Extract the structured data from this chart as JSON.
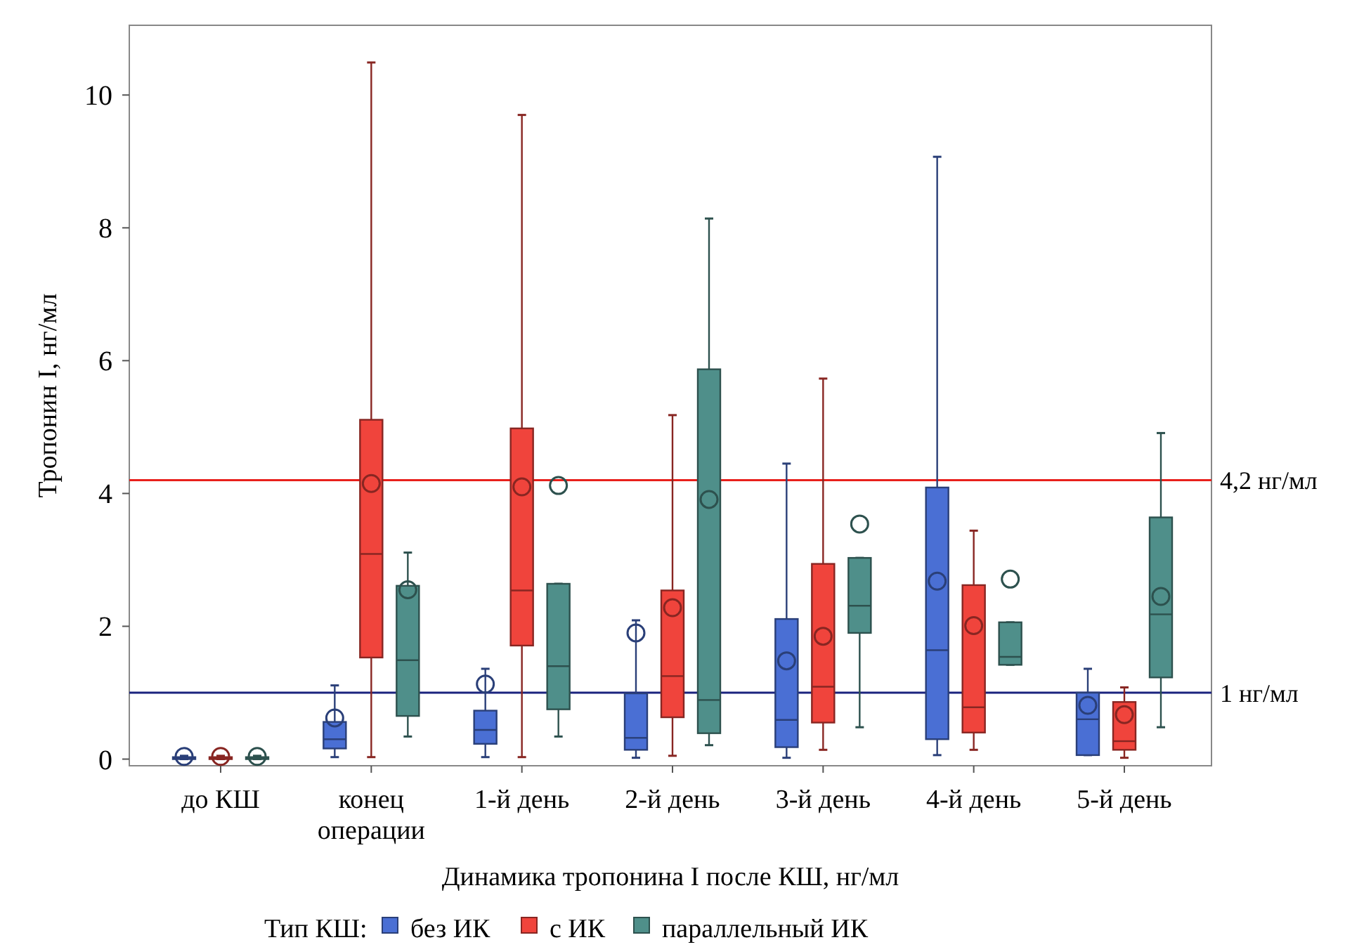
{
  "chart_data": {
    "type": "box",
    "xlabel": "Динамика тропонина I после КШ, нг/мл",
    "ylabel": "Тропонин I, нг/мл",
    "legend_title": "Тип КШ:",
    "legend": "bottom",
    "grid": false,
    "categories": [
      "до КШ",
      "конец операции",
      "1-й день",
      "2-й день",
      "3-й день",
      "4-й день",
      "5-й день"
    ],
    "ylim": [
      -0.1,
      11.05
    ],
    "yticks": [
      0,
      2,
      4,
      6,
      8,
      10
    ],
    "ref_lines": [
      {
        "axis": "y",
        "value": 4.2,
        "label": "4,2 нг/мл",
        "color": "#e8201c"
      },
      {
        "axis": "y",
        "value": 1,
        "label": "1 нг/мл",
        "color": "#1a237e"
      }
    ],
    "series": [
      {
        "name": "без ИК",
        "color": "#4a6fd4",
        "boxes": [
          {
            "low": 0,
            "q1": 0,
            "median": 0.01,
            "q3": 0.03,
            "high": 0.05,
            "mean": 0.04
          },
          {
            "low": 0.03,
            "q1": 0.16,
            "median": 0.3,
            "q3": 0.56,
            "high": 1.11,
            "mean": 0.62
          },
          {
            "low": 0.03,
            "q1": 0.23,
            "median": 0.44,
            "q3": 0.73,
            "high": 1.36,
            "mean": 1.13
          },
          {
            "low": 0.02,
            "q1": 0.14,
            "median": 0.32,
            "q3": 0.99,
            "high": 2.09,
            "mean": 1.9
          },
          {
            "low": 0.02,
            "q1": 0.18,
            "median": 0.59,
            "q3": 2.11,
            "high": 4.45,
            "mean": 1.48
          },
          {
            "low": 0.06,
            "q1": 0.3,
            "median": 1.64,
            "q3": 4.09,
            "high": 9.07,
            "mean": 2.68
          },
          {
            "low": 0.06,
            "q1": 0.06,
            "median": 0.6,
            "q3": 1,
            "high": 1.36,
            "mean": 0.81
          }
        ]
      },
      {
        "name": "с ИК",
        "color": "#f0443c",
        "boxes": [
          {
            "low": 0,
            "q1": 0,
            "median": 0.01,
            "q3": 0.03,
            "high": 0.05,
            "mean": 0.04
          },
          {
            "low": 0.03,
            "q1": 1.53,
            "median": 3.09,
            "q3": 5.11,
            "high": 10.49,
            "mean": 4.15
          },
          {
            "low": 0.03,
            "q1": 1.71,
            "median": 2.54,
            "q3": 4.98,
            "high": 9.7,
            "mean": 4.1
          },
          {
            "low": 0.05,
            "q1": 0.63,
            "median": 1.25,
            "q3": 2.54,
            "high": 5.18,
            "mean": 2.28
          },
          {
            "low": 0.14,
            "q1": 0.55,
            "median": 1.09,
            "q3": 2.94,
            "high": 5.73,
            "mean": 1.85
          },
          {
            "low": 0.14,
            "q1": 0.4,
            "median": 0.78,
            "q3": 2.62,
            "high": 3.44,
            "mean": 2.01
          },
          {
            "low": 0.02,
            "q1": 0.14,
            "median": 0.27,
            "q3": 0.86,
            "high": 1.08,
            "mean": 0.67
          }
        ]
      },
      {
        "name": "параллельный ИК",
        "color": "#4f8f8a",
        "boxes": [
          {
            "low": 0,
            "q1": 0,
            "median": 0.01,
            "q3": 0.03,
            "high": 0.05,
            "mean": 0.04
          },
          {
            "low": 0.34,
            "q1": 0.65,
            "median": 1.49,
            "q3": 2.61,
            "high": 3.11,
            "mean": 2.55
          },
          {
            "low": 0.34,
            "q1": 0.75,
            "median": 1.4,
            "q3": 2.64,
            "high": 2.64,
            "mean": 4.12
          },
          {
            "low": 0.21,
            "q1": 0.39,
            "median": 0.89,
            "q3": 5.87,
            "high": 8.14,
            "mean": 3.91
          },
          {
            "low": 0.48,
            "q1": 1.9,
            "median": 2.31,
            "q3": 3.03,
            "high": 3.03,
            "mean": 3.54
          },
          {
            "low": 1.42,
            "q1": 1.42,
            "median": 1.54,
            "q3": 2.06,
            "high": 2.06,
            "mean": 2.71
          },
          {
            "low": 0.48,
            "q1": 1.23,
            "median": 2.18,
            "q3": 3.64,
            "high": 4.91,
            "mean": 2.45
          }
        ]
      }
    ]
  }
}
